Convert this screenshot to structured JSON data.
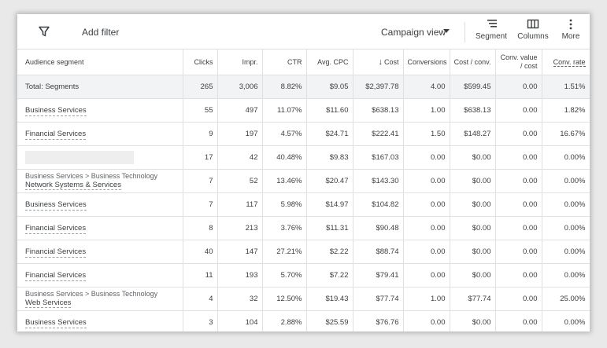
{
  "toolbar": {
    "add_filter": "Add filter",
    "campaign_view": "Campaign view",
    "segment": "Segment",
    "columns": "Columns",
    "more": "More"
  },
  "table": {
    "headers": {
      "segment": "Audience segment",
      "clicks": "Clicks",
      "impr": "Impr.",
      "ctr": "CTR",
      "avg_cpc": "Avg. CPC",
      "sort_arrow": "↓",
      "cost": "Cost",
      "conversions": "Conversions",
      "cost_conv": "Cost / conv.",
      "conv_value_cost": "Conv. value / cost",
      "conv_rate": "Conv. rate"
    },
    "total": {
      "label": "Total: Segments",
      "clicks": "265",
      "impr": "3,006",
      "ctr": "8.82%",
      "avg_cpc": "$9.05",
      "cost": "$2,397.78",
      "conversions": "4.00",
      "cost_conv": "$599.45",
      "conv_value_cost": "0.00",
      "conv_rate": "1.51%"
    },
    "rows": [
      {
        "path": "",
        "segment": "Business Services",
        "clicks": "55",
        "impr": "497",
        "ctr": "11.07%",
        "avg_cpc": "$11.60",
        "cost": "$638.13",
        "conversions": "1.00",
        "cost_conv": "$638.13",
        "conv_value_cost": "0.00",
        "conv_rate": "1.82%"
      },
      {
        "path": "",
        "segment": "Financial Services",
        "clicks": "9",
        "impr": "197",
        "ctr": "4.57%",
        "avg_cpc": "$24.71",
        "cost": "$222.41",
        "conversions": "1.50",
        "cost_conv": "$148.27",
        "conv_value_cost": "0.00",
        "conv_rate": "16.67%"
      },
      {
        "path": "",
        "segment": "",
        "clicks": "17",
        "impr": "42",
        "ctr": "40.48%",
        "avg_cpc": "$9.83",
        "cost": "$167.03",
        "conversions": "0.00",
        "cost_conv": "$0.00",
        "conv_value_cost": "0.00",
        "conv_rate": "0.00%"
      },
      {
        "path": "Business Services > Business Technology",
        "segment": "Network Systems & Services",
        "clicks": "7",
        "impr": "52",
        "ctr": "13.46%",
        "avg_cpc": "$20.47",
        "cost": "$143.30",
        "conversions": "0.00",
        "cost_conv": "$0.00",
        "conv_value_cost": "0.00",
        "conv_rate": "0.00%"
      },
      {
        "path": "",
        "segment": "Business Services",
        "clicks": "7",
        "impr": "117",
        "ctr": "5.98%",
        "avg_cpc": "$14.97",
        "cost": "$104.82",
        "conversions": "0.00",
        "cost_conv": "$0.00",
        "conv_value_cost": "0.00",
        "conv_rate": "0.00%"
      },
      {
        "path": "",
        "segment": "Financial Services",
        "clicks": "8",
        "impr": "213",
        "ctr": "3.76%",
        "avg_cpc": "$11.31",
        "cost": "$90.48",
        "conversions": "0.00",
        "cost_conv": "$0.00",
        "conv_value_cost": "0.00",
        "conv_rate": "0.00%"
      },
      {
        "path": "",
        "segment": "Financial Services",
        "clicks": "40",
        "impr": "147",
        "ctr": "27.21%",
        "avg_cpc": "$2.22",
        "cost": "$88.74",
        "conversions": "0.00",
        "cost_conv": "$0.00",
        "conv_value_cost": "0.00",
        "conv_rate": "0.00%"
      },
      {
        "path": "",
        "segment": "Financial Services",
        "clicks": "11",
        "impr": "193",
        "ctr": "5.70%",
        "avg_cpc": "$7.22",
        "cost": "$79.41",
        "conversions": "0.00",
        "cost_conv": "$0.00",
        "conv_value_cost": "0.00",
        "conv_rate": "0.00%"
      },
      {
        "path": "Business Services > Business Technology",
        "segment": "Web Services",
        "clicks": "4",
        "impr": "32",
        "ctr": "12.50%",
        "avg_cpc": "$19.43",
        "cost": "$77.74",
        "conversions": "1.00",
        "cost_conv": "$77.74",
        "conv_value_cost": "0.00",
        "conv_rate": "25.00%"
      },
      {
        "path": "",
        "segment": "Business Services",
        "clicks": "3",
        "impr": "104",
        "ctr": "2.88%",
        "avg_cpc": "$25.59",
        "cost": "$76.76",
        "conversions": "0.00",
        "cost_conv": "$0.00",
        "conv_value_cost": "0.00",
        "conv_rate": "0.00%"
      }
    ]
  },
  "icons": {
    "filter": "filter-icon",
    "dropdown": "caret-down-icon",
    "segment": "segment-icon",
    "columns": "columns-icon",
    "more": "more-vert-icon"
  },
  "colors": {
    "total_row_bg": "#f1f3f4",
    "border": "#e0e0e0",
    "text": "#3c4043"
  }
}
